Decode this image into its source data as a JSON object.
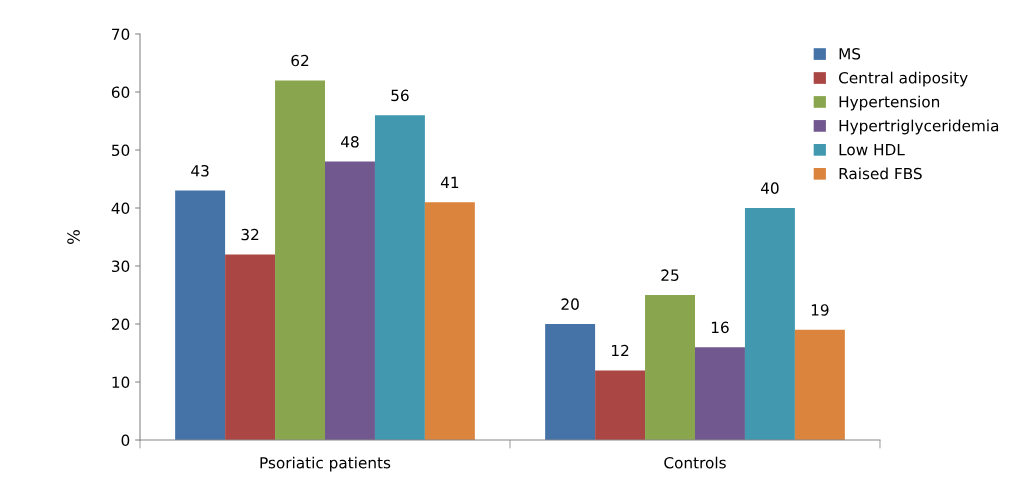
{
  "chart_data": {
    "type": "bar",
    "ylabel": "%",
    "categories": [
      "Psoriatic patients",
      "Controls"
    ],
    "series": [
      {
        "name": "MS",
        "color": "#4572a7",
        "values": [
          43,
          20
        ]
      },
      {
        "name": "Central adiposity",
        "color": "#aa4643",
        "values": [
          32,
          12
        ]
      },
      {
        "name": "Hypertension",
        "color": "#89a54e",
        "values": [
          62,
          25
        ]
      },
      {
        "name": "Hypertriglyceridemia",
        "color": "#71588f",
        "values": [
          48,
          16
        ]
      },
      {
        "name": "Low HDL",
        "color": "#4198af",
        "values": [
          56,
          40
        ]
      },
      {
        "name": "Raised FBS",
        "color": "#db843d",
        "values": [
          41,
          19
        ]
      }
    ],
    "ylim": [
      0,
      70
    ],
    "yticks": [
      0,
      10,
      20,
      30,
      40,
      50,
      60,
      70
    ],
    "grid": false,
    "legend": "top right",
    "data_labels": true
  }
}
